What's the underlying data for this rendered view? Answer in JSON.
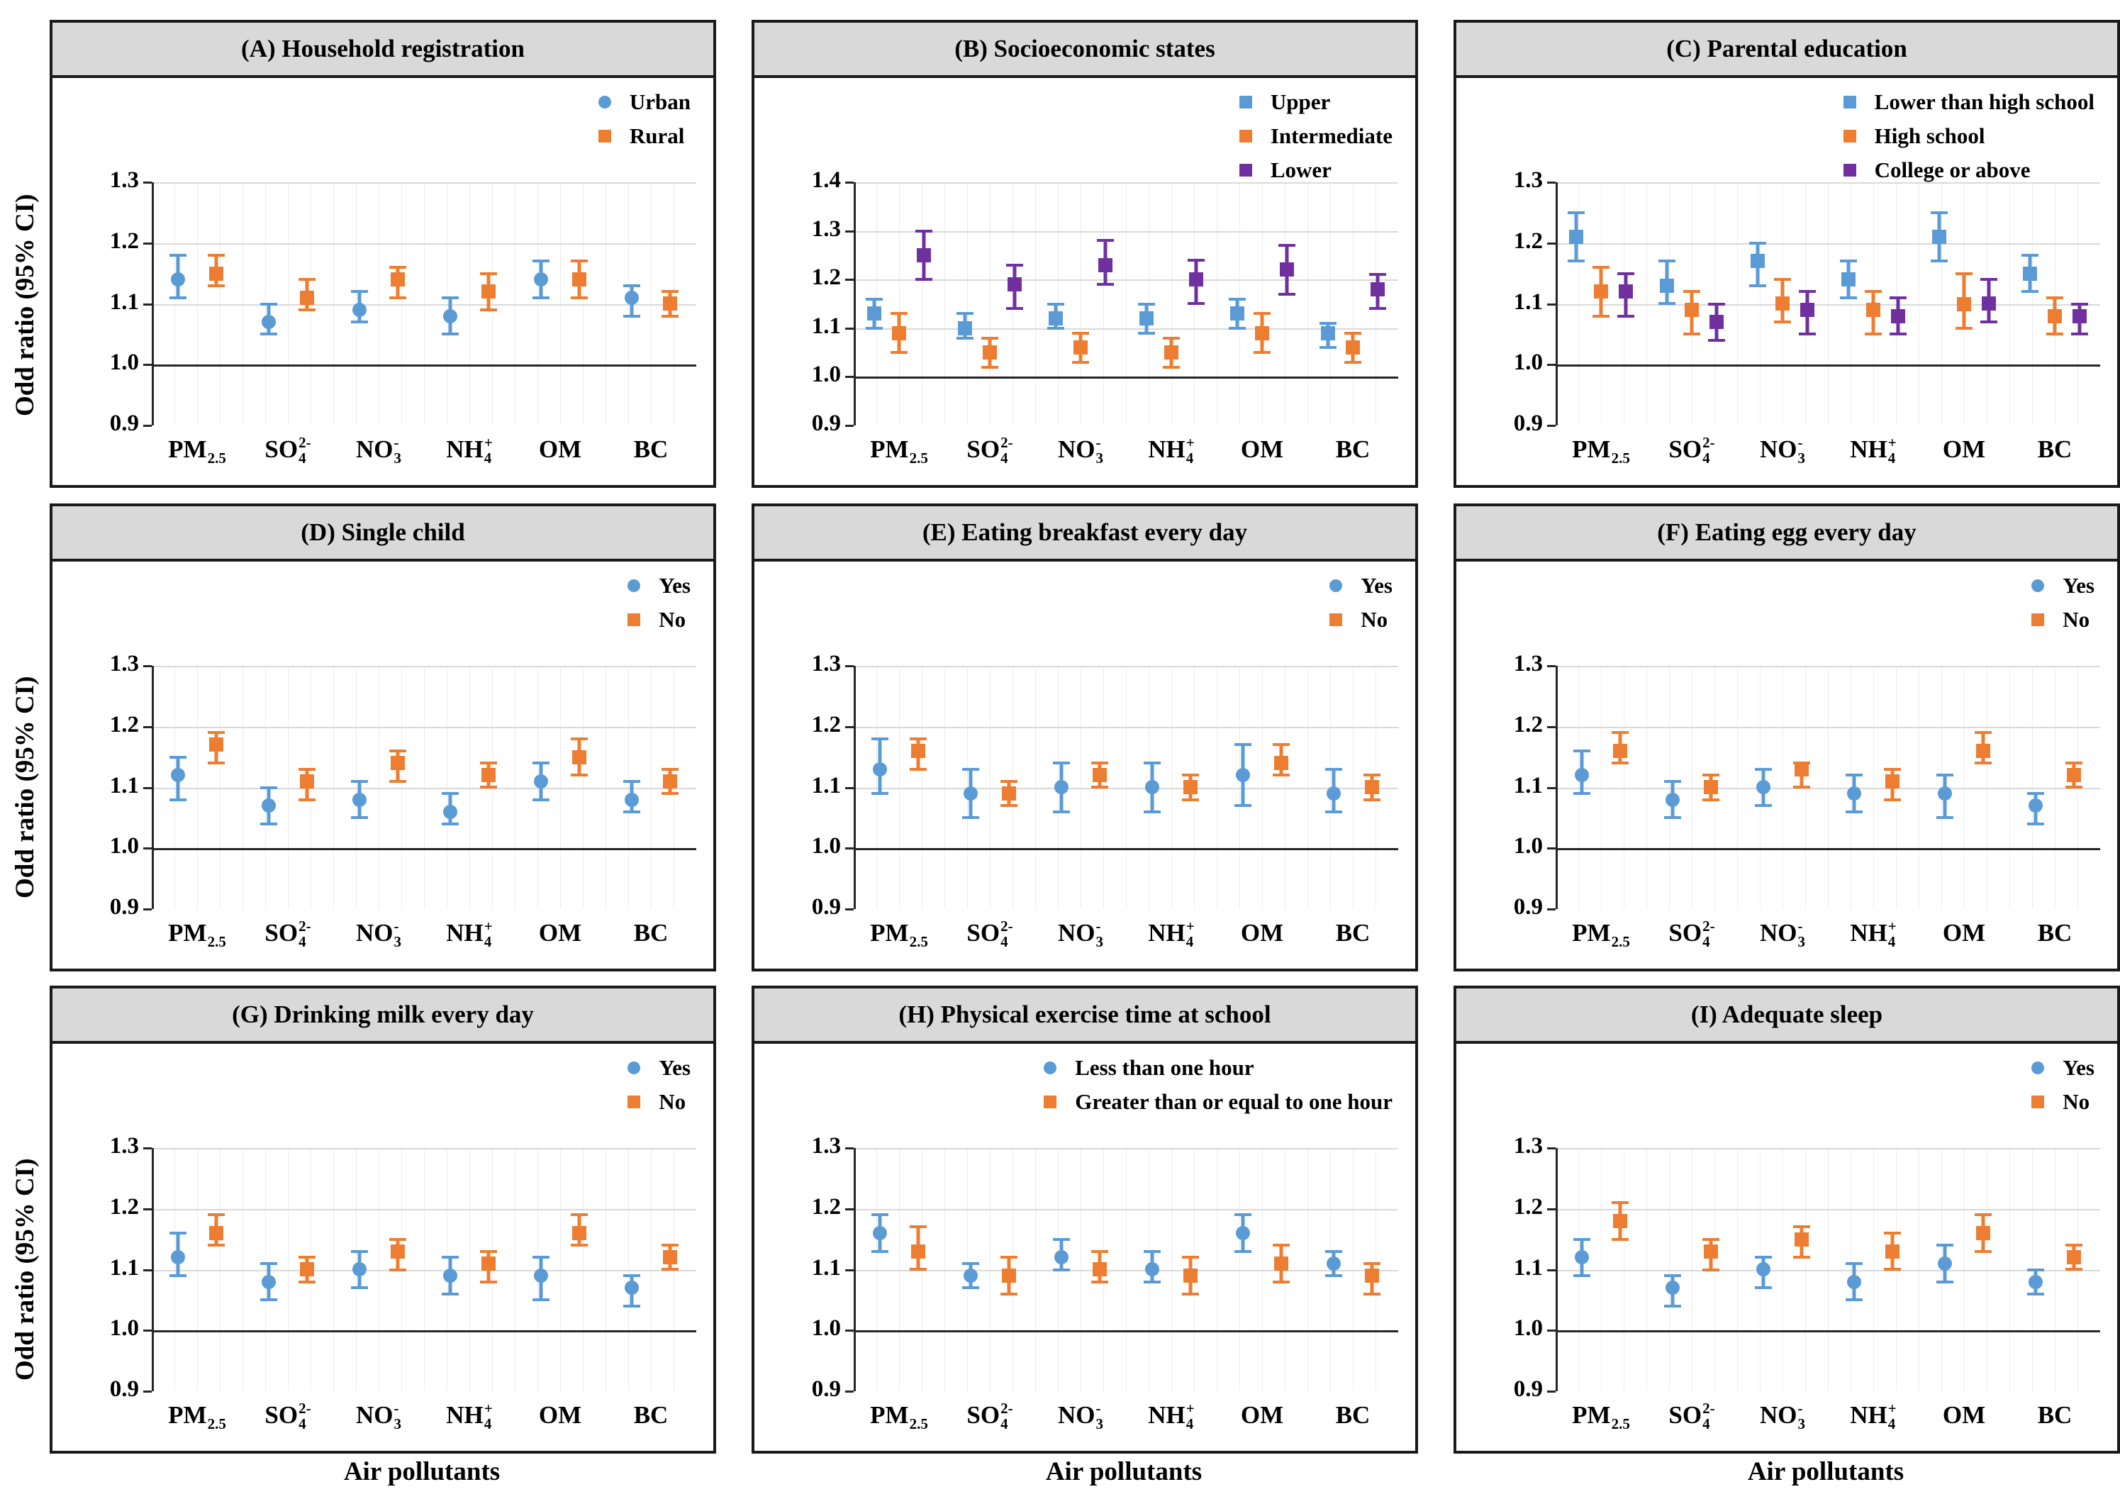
{
  "axes": {
    "y_label": "Odd ratio (95% CI)",
    "x_label": "Air pollutants"
  },
  "colors": {
    "blue": "#5B9BD5",
    "orange": "#ED7D31",
    "purple": "#7030A0",
    "grid": "#D9D9D9",
    "title_bg": "#D9D9D9",
    "axis": "#262626"
  },
  "categories": [
    {
      "main": "PM",
      "sub": "2.5",
      "sup": ""
    },
    {
      "main": "SO",
      "sub": "4",
      "sup": "2-"
    },
    {
      "main": "NO",
      "sub": "3",
      "sup": "-"
    },
    {
      "main": "NH",
      "sub": "4",
      "sup": "+"
    },
    {
      "main": "OM",
      "sub": "",
      "sup": ""
    },
    {
      "main": "BC",
      "sub": "",
      "sup": ""
    }
  ],
  "chart_data": [
    {
      "id": "A",
      "title": "(A) Household registration",
      "type": "scatter",
      "ylim": [
        0.9,
        1.3
      ],
      "yticks": [
        0.9,
        1.0,
        1.1,
        1.2,
        1.3
      ],
      "ref_line": 1.0,
      "series": [
        {
          "name": "Urban",
          "marker": "circle",
          "color": "#5B9BD5",
          "values": [
            1.14,
            1.07,
            1.09,
            1.08,
            1.14,
            1.11
          ],
          "lower": [
            1.11,
            1.05,
            1.07,
            1.05,
            1.11,
            1.08
          ],
          "upper": [
            1.18,
            1.1,
            1.12,
            1.11,
            1.17,
            1.13
          ]
        },
        {
          "name": "Rural",
          "marker": "square",
          "color": "#ED7D31",
          "values": [
            1.15,
            1.11,
            1.14,
            1.12,
            1.14,
            1.1
          ],
          "lower": [
            1.13,
            1.09,
            1.11,
            1.09,
            1.11,
            1.08
          ],
          "upper": [
            1.18,
            1.14,
            1.16,
            1.15,
            1.17,
            1.12
          ]
        }
      ]
    },
    {
      "id": "B",
      "title": "(B) Socioeconomic states",
      "type": "scatter",
      "ylim": [
        0.9,
        1.4
      ],
      "yticks": [
        0.9,
        1.0,
        1.1,
        1.2,
        1.3,
        1.4
      ],
      "ref_line": 1.0,
      "series": [
        {
          "name": "Upper",
          "marker": "square",
          "color": "#5B9BD5",
          "values": [
            1.13,
            1.1,
            1.12,
            1.12,
            1.13,
            1.09
          ],
          "lower": [
            1.1,
            1.08,
            1.1,
            1.09,
            1.1,
            1.06
          ],
          "upper": [
            1.16,
            1.13,
            1.15,
            1.15,
            1.16,
            1.11
          ]
        },
        {
          "name": "Intermediate",
          "marker": "square",
          "color": "#ED7D31",
          "values": [
            1.09,
            1.05,
            1.06,
            1.05,
            1.09,
            1.06
          ],
          "lower": [
            1.05,
            1.02,
            1.03,
            1.02,
            1.05,
            1.03
          ],
          "upper": [
            1.13,
            1.08,
            1.09,
            1.08,
            1.13,
            1.09
          ]
        },
        {
          "name": "Lower",
          "marker": "square",
          "color": "#7030A0",
          "values": [
            1.25,
            1.19,
            1.23,
            1.2,
            1.22,
            1.18
          ],
          "lower": [
            1.2,
            1.14,
            1.19,
            1.15,
            1.17,
            1.14
          ],
          "upper": [
            1.3,
            1.23,
            1.28,
            1.24,
            1.27,
            1.21
          ]
        }
      ]
    },
    {
      "id": "C",
      "title": "(C) Parental education",
      "type": "scatter",
      "ylim": [
        0.9,
        1.3
      ],
      "yticks": [
        0.9,
        1.0,
        1.1,
        1.2,
        1.3
      ],
      "ref_line": 1.0,
      "series": [
        {
          "name": "Lower than high school",
          "marker": "square",
          "color": "#5B9BD5",
          "values": [
            1.21,
            1.13,
            1.17,
            1.14,
            1.21,
            1.15
          ],
          "lower": [
            1.17,
            1.1,
            1.13,
            1.11,
            1.17,
            1.12
          ],
          "upper": [
            1.25,
            1.17,
            1.2,
            1.17,
            1.25,
            1.18
          ]
        },
        {
          "name": "High school",
          "marker": "square",
          "color": "#ED7D31",
          "values": [
            1.12,
            1.09,
            1.1,
            1.09,
            1.1,
            1.08
          ],
          "lower": [
            1.08,
            1.05,
            1.07,
            1.05,
            1.06,
            1.05
          ],
          "upper": [
            1.16,
            1.12,
            1.14,
            1.12,
            1.15,
            1.11
          ]
        },
        {
          "name": "College or above",
          "marker": "square",
          "color": "#7030A0",
          "values": [
            1.12,
            1.07,
            1.09,
            1.08,
            1.1,
            1.08
          ],
          "lower": [
            1.08,
            1.04,
            1.05,
            1.05,
            1.07,
            1.05
          ],
          "upper": [
            1.15,
            1.1,
            1.12,
            1.11,
            1.14,
            1.1
          ]
        }
      ]
    },
    {
      "id": "D",
      "title": "(D) Single child",
      "type": "scatter",
      "ylim": [
        0.9,
        1.3
      ],
      "yticks": [
        0.9,
        1.0,
        1.1,
        1.2,
        1.3
      ],
      "ref_line": 1.0,
      "series": [
        {
          "name": "Yes",
          "marker": "circle",
          "color": "#5B9BD5",
          "values": [
            1.12,
            1.07,
            1.08,
            1.06,
            1.11,
            1.08
          ],
          "lower": [
            1.08,
            1.04,
            1.05,
            1.04,
            1.08,
            1.06
          ],
          "upper": [
            1.15,
            1.1,
            1.11,
            1.09,
            1.14,
            1.11
          ]
        },
        {
          "name": "No",
          "marker": "square",
          "color": "#ED7D31",
          "values": [
            1.17,
            1.11,
            1.14,
            1.12,
            1.15,
            1.11
          ],
          "lower": [
            1.14,
            1.08,
            1.11,
            1.1,
            1.12,
            1.09
          ],
          "upper": [
            1.19,
            1.13,
            1.16,
            1.14,
            1.18,
            1.13
          ]
        }
      ]
    },
    {
      "id": "E",
      "title": "(E) Eating breakfast every day",
      "type": "scatter",
      "ylim": [
        0.9,
        1.3
      ],
      "yticks": [
        0.9,
        1.0,
        1.1,
        1.2,
        1.3
      ],
      "ref_line": 1.0,
      "series": [
        {
          "name": "Yes",
          "marker": "circle",
          "color": "#5B9BD5",
          "values": [
            1.13,
            1.09,
            1.1,
            1.1,
            1.12,
            1.09
          ],
          "lower": [
            1.09,
            1.05,
            1.06,
            1.06,
            1.07,
            1.06
          ],
          "upper": [
            1.18,
            1.13,
            1.14,
            1.14,
            1.17,
            1.13
          ]
        },
        {
          "name": "No",
          "marker": "square",
          "color": "#ED7D31",
          "values": [
            1.16,
            1.09,
            1.12,
            1.1,
            1.14,
            1.1
          ],
          "lower": [
            1.13,
            1.07,
            1.1,
            1.08,
            1.12,
            1.08
          ],
          "upper": [
            1.18,
            1.11,
            1.14,
            1.12,
            1.17,
            1.12
          ]
        }
      ]
    },
    {
      "id": "F",
      "title": "(F) Eating egg every day",
      "type": "scatter",
      "ylim": [
        0.9,
        1.3
      ],
      "yticks": [
        0.9,
        1.0,
        1.1,
        1.2,
        1.3
      ],
      "ref_line": 1.0,
      "series": [
        {
          "name": "Yes",
          "marker": "circle",
          "color": "#5B9BD5",
          "values": [
            1.12,
            1.08,
            1.1,
            1.09,
            1.09,
            1.07
          ],
          "lower": [
            1.09,
            1.05,
            1.07,
            1.06,
            1.05,
            1.04
          ],
          "upper": [
            1.16,
            1.11,
            1.13,
            1.12,
            1.12,
            1.09
          ]
        },
        {
          "name": "No",
          "marker": "square",
          "color": "#ED7D31",
          "values": [
            1.16,
            1.1,
            1.13,
            1.11,
            1.16,
            1.12
          ],
          "lower": [
            1.14,
            1.08,
            1.1,
            1.08,
            1.14,
            1.1
          ],
          "upper": [
            1.19,
            1.12,
            1.14,
            1.13,
            1.19,
            1.14
          ]
        }
      ]
    },
    {
      "id": "G",
      "title": "(G) Drinking milk every day",
      "type": "scatter",
      "ylim": [
        0.9,
        1.3
      ],
      "yticks": [
        0.9,
        1.0,
        1.1,
        1.2,
        1.3
      ],
      "ref_line": 1.0,
      "series": [
        {
          "name": "Yes",
          "marker": "circle",
          "color": "#5B9BD5",
          "values": [
            1.12,
            1.08,
            1.1,
            1.09,
            1.09,
            1.07
          ],
          "lower": [
            1.09,
            1.05,
            1.07,
            1.06,
            1.05,
            1.04
          ],
          "upper": [
            1.16,
            1.11,
            1.13,
            1.12,
            1.12,
            1.09
          ]
        },
        {
          "name": "No",
          "marker": "square",
          "color": "#ED7D31",
          "values": [
            1.16,
            1.1,
            1.13,
            1.11,
            1.16,
            1.12
          ],
          "lower": [
            1.14,
            1.08,
            1.1,
            1.08,
            1.14,
            1.1
          ],
          "upper": [
            1.19,
            1.12,
            1.15,
            1.13,
            1.19,
            1.14
          ]
        }
      ]
    },
    {
      "id": "H",
      "title": "(H) Physical exercise time at school",
      "type": "scatter",
      "ylim": [
        0.9,
        1.3
      ],
      "yticks": [
        0.9,
        1.0,
        1.1,
        1.2,
        1.3
      ],
      "ref_line": 1.0,
      "series": [
        {
          "name": "Less than one hour",
          "marker": "circle",
          "color": "#5B9BD5",
          "values": [
            1.16,
            1.09,
            1.12,
            1.1,
            1.16,
            1.11
          ],
          "lower": [
            1.13,
            1.07,
            1.1,
            1.08,
            1.13,
            1.09
          ],
          "upper": [
            1.19,
            1.11,
            1.15,
            1.13,
            1.19,
            1.13
          ]
        },
        {
          "name": "Greater than or equal to one hour",
          "marker": "square",
          "color": "#ED7D31",
          "values": [
            1.13,
            1.09,
            1.1,
            1.09,
            1.11,
            1.09
          ],
          "lower": [
            1.1,
            1.06,
            1.08,
            1.06,
            1.08,
            1.06
          ],
          "upper": [
            1.17,
            1.12,
            1.13,
            1.12,
            1.14,
            1.11
          ]
        }
      ]
    },
    {
      "id": "I",
      "title": "(I) Adequate sleep",
      "type": "scatter",
      "ylim": [
        0.9,
        1.3
      ],
      "yticks": [
        0.9,
        1.0,
        1.1,
        1.2,
        1.3
      ],
      "ref_line": 1.0,
      "series": [
        {
          "name": "Yes",
          "marker": "circle",
          "color": "#5B9BD5",
          "values": [
            1.12,
            1.07,
            1.1,
            1.08,
            1.11,
            1.08
          ],
          "lower": [
            1.09,
            1.04,
            1.07,
            1.05,
            1.08,
            1.06
          ],
          "upper": [
            1.15,
            1.09,
            1.12,
            1.11,
            1.14,
            1.1
          ]
        },
        {
          "name": "No",
          "marker": "square",
          "color": "#ED7D31",
          "values": [
            1.18,
            1.13,
            1.15,
            1.13,
            1.16,
            1.12
          ],
          "lower": [
            1.15,
            1.1,
            1.12,
            1.1,
            1.13,
            1.1
          ],
          "upper": [
            1.21,
            1.15,
            1.17,
            1.16,
            1.19,
            1.14
          ]
        }
      ]
    }
  ]
}
